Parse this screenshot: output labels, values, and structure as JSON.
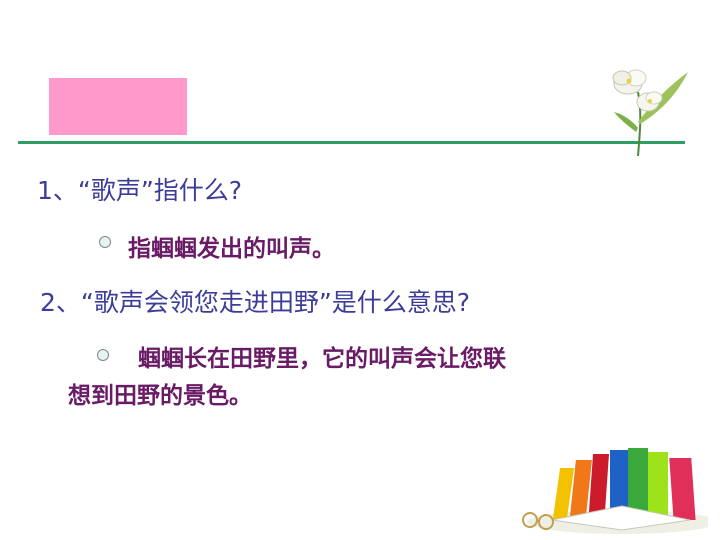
{
  "questions": [
    {
      "text": "1、“歌声”指什么?"
    },
    {
      "text": "2、“歌声会领您走进田野”是什么意思?"
    }
  ],
  "answers": [
    {
      "text": "指蝈蝈发出的叫声。"
    },
    {
      "line1": "蝈蝈长在田野里，它的叫声会让您联",
      "line2": "想到田野的景色。"
    }
  ],
  "colors": {
    "accent_pink": "#ff99cc",
    "divider_green": "#2e9e64",
    "question_text": "#3d3d99",
    "answer_text": "#6a1b66"
  },
  "icons": [
    "flower-icon",
    "books-icon",
    "bullet-icon"
  ]
}
